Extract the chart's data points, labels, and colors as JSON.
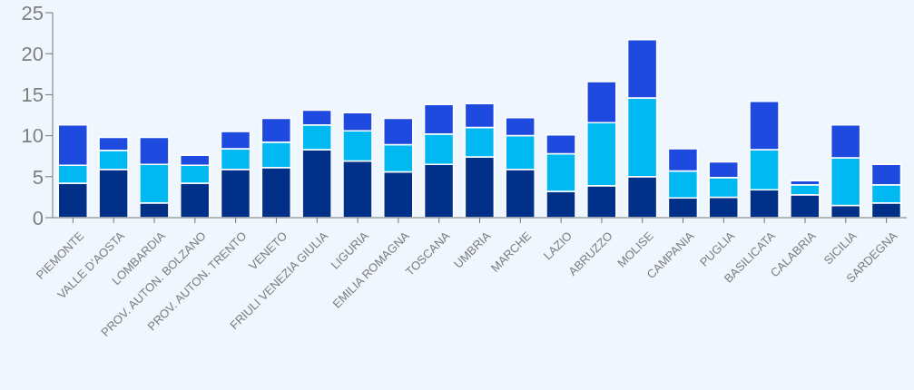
{
  "chart_data": {
    "type": "bar",
    "stacked": true,
    "categories": [
      "PIEMONTE",
      "VALLE D'AOSTA",
      "LOMBARDIA",
      "PROV. AUTON. BOLZANO",
      "PROV. AUTON. TRENTO",
      "VENETO",
      "FRIULI VENEZIA GIULIA",
      "LIGURIA",
      "EMILIA ROMAGNA",
      "TOSCANA",
      "UMBRIA",
      "MARCHE",
      "LAZIO",
      "ABRUZZO",
      "MOLISE",
      "CAMPANIA",
      "PUGLIA",
      "BASILICATA",
      "CALABRIA",
      "SICILIA",
      "SARDEGNA"
    ],
    "series": [
      {
        "color": "#003087",
        "values": [
          4.2,
          5.9,
          1.8,
          4.2,
          5.9,
          6.1,
          8.3,
          6.9,
          5.6,
          6.5,
          7.4,
          5.9,
          3.2,
          3.9,
          5.0,
          2.4,
          2.5,
          3.4,
          2.8,
          1.5,
          1.8
        ]
      },
      {
        "color": "#00b9f2",
        "values": [
          2.2,
          2.3,
          4.7,
          2.2,
          2.5,
          3.1,
          3.0,
          3.7,
          3.3,
          3.7,
          3.6,
          4.1,
          4.6,
          7.7,
          9.6,
          3.3,
          2.4,
          4.9,
          1.2,
          5.8,
          2.2
        ]
      },
      {
        "color": "#1f4ae0",
        "values": [
          4.9,
          1.6,
          3.3,
          1.2,
          2.1,
          2.9,
          1.8,
          2.2,
          3.2,
          3.6,
          2.9,
          2.2,
          2.3,
          5.0,
          7.1,
          2.7,
          1.9,
          5.9,
          0.5,
          4.0,
          2.5
        ]
      }
    ],
    "ylim": [
      0,
      25
    ],
    "yticks": [
      0,
      5,
      10,
      15,
      20,
      25
    ],
    "grid": false,
    "legend": false
  }
}
